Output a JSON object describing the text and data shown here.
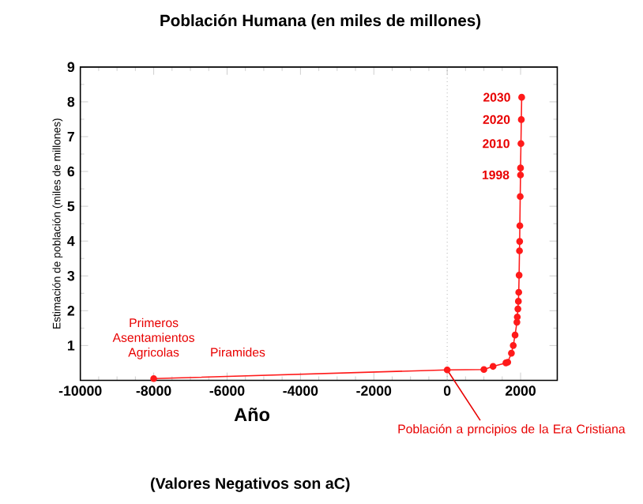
{
  "chart_data": {
    "type": "line",
    "title": "Población Humana (en miles de millones)",
    "xlabel": "Año",
    "ylabel": "Estimación de población (miles de millones)",
    "x": [
      -8000,
      0,
      1000,
      1250,
      1600,
      1650,
      1750,
      1800,
      1850,
      1900,
      1910,
      1927,
      1940,
      1950,
      1960,
      1970,
      1975,
      1980,
      1990,
      1998,
      1999,
      2010,
      2020,
      2030
    ],
    "series": [
      {
        "color": "#ff1a1a",
        "values": [
          0.05,
          0.3,
          0.31,
          0.4,
          0.5,
          0.52,
          0.78,
          1.0,
          1.3,
          1.67,
          1.82,
          2.05,
          2.27,
          2.53,
          3.02,
          3.72,
          3.99,
          4.44,
          5.28,
          5.9,
          6.1,
          6.8,
          7.49,
          8.13
        ]
      }
    ],
    "marker": "circle",
    "line_style": "solid",
    "xlim": [
      -10000,
      3000
    ],
    "ylim": [
      0,
      9
    ],
    "xticks": [
      -10000,
      -8000,
      -6000,
      -4000,
      -2000,
      0,
      2000
    ],
    "yticks": [
      1,
      2,
      3,
      4,
      5,
      6,
      7,
      8,
      9
    ],
    "ref_lines": [
      {
        "axis": "x",
        "value": 0,
        "color": "#808080",
        "line_style": "dotted"
      }
    ],
    "annotations": [
      {
        "text": "2030",
        "x": 2030,
        "y": 8.13
      },
      {
        "text": "2020",
        "x": 2020,
        "y": 7.49
      },
      {
        "text": "2010",
        "x": 2010,
        "y": 6.8
      },
      {
        "text": "1998",
        "x": 1998,
        "y": 5.9
      },
      {
        "text": "Primeros Asentamientos Agricolas",
        "x": -8000,
        "y": 0.05
      },
      "Piramides",
      {
        "text": "Población a prncipios de la Era Cristiana",
        "x": 0,
        "y": 0.3
      },
      "(Valores Negativos son aC)"
    ]
  }
}
